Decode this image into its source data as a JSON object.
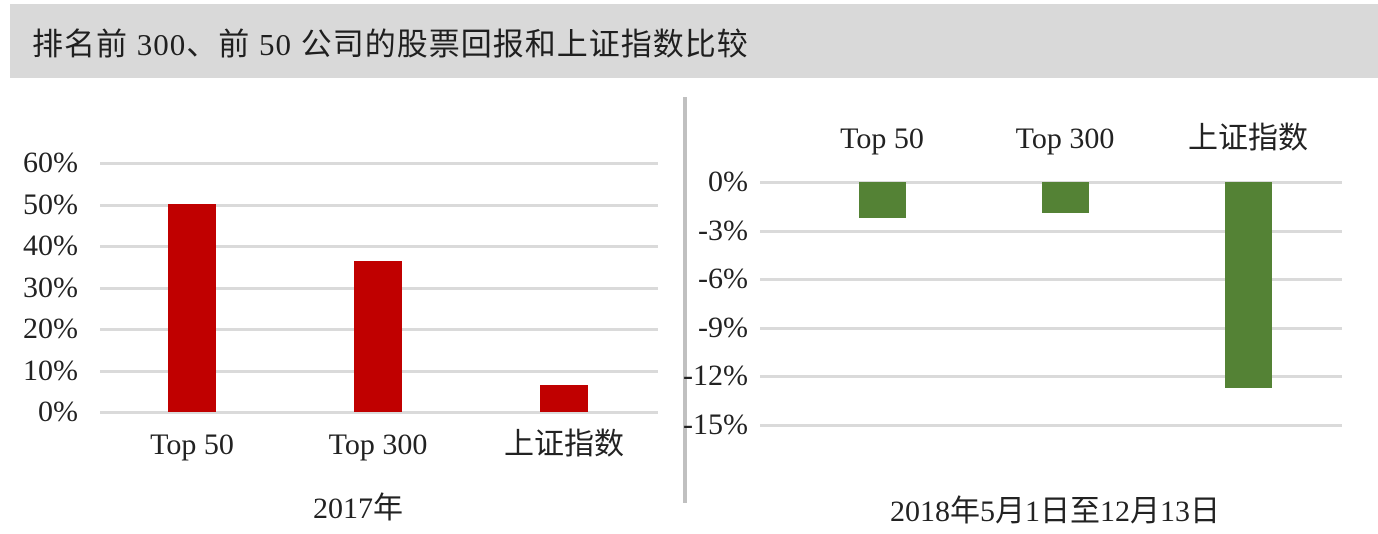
{
  "page": {
    "title": "排名前 300、前 50 公司的股票回报和上证指数比较",
    "title_bar_color": "#d9d9d9",
    "divider_color": "#c0c0c0",
    "background": "#ffffff"
  },
  "chart_data": [
    {
      "type": "bar",
      "panel": "left",
      "title": "2017年",
      "xlabel": "2017年",
      "ylabel": "",
      "categories": [
        "Top 50",
        "Top 300",
        "上证指数"
      ],
      "values": [
        50.2,
        36.5,
        6.6
      ],
      "unit": "%",
      "ylim": [
        0,
        60
      ],
      "yticks": [
        "60%",
        "50%",
        "40%",
        "30%",
        "20%",
        "10%",
        "0%"
      ],
      "grid": true,
      "legend": "none",
      "category_label_position": "below-axis",
      "bar_color": "#c00000",
      "gridline_color": "#dadada"
    },
    {
      "type": "bar",
      "panel": "right",
      "title": "2018年5月1日至12月13日",
      "xlabel": "2018年5月1日至12月13日",
      "ylabel": "",
      "categories": [
        "Top 50",
        "Top 300",
        "上证指数"
      ],
      "values": [
        -2.2,
        -1.9,
        -12.7
      ],
      "unit": "%",
      "ylim": [
        -15,
        0
      ],
      "yticks": [
        "0%",
        "-3%",
        "-6%",
        "-9%",
        "-12%",
        "-15%"
      ],
      "grid": true,
      "legend": "none",
      "category_label_position": "above-zero-line",
      "bar_color": "#548235",
      "gridline_color": "#dadada"
    }
  ]
}
